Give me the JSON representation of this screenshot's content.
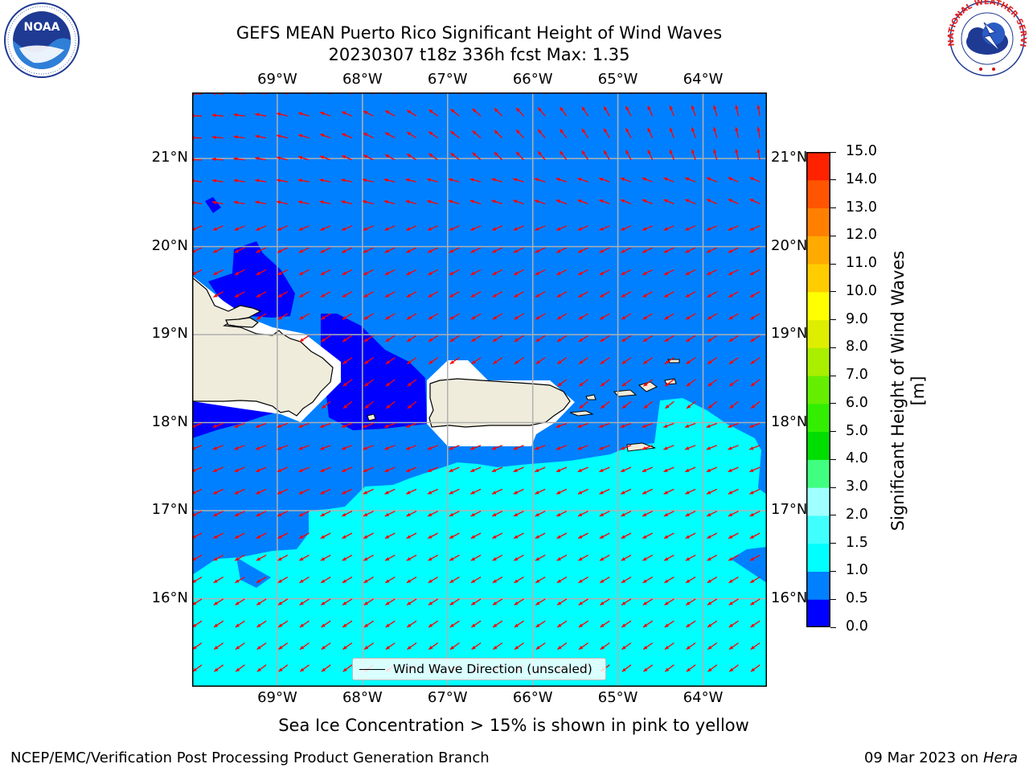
{
  "title": {
    "line1": "GEFS MEAN Puerto Rico Significant Height of Wind Waves",
    "line2": "20230307 t18z 336h fcst   Max: 1.35"
  },
  "map": {
    "lon_labels": [
      "69°W",
      "68°W",
      "67°W",
      "66°W",
      "65°W",
      "64°W"
    ],
    "lat_labels": [
      "21°N",
      "20°N",
      "19°N",
      "18°N",
      "17°N",
      "16°N"
    ],
    "lon_range": [
      -70.0,
      -63.25
    ],
    "lat_range": [
      15.0,
      21.75
    ],
    "legend_label": "Wind Wave Direction (unscaled)",
    "arrow_color": "#ff0000",
    "land_color": "#efecdc",
    "ocean_colors": {
      "0.0-0.5": "#0000ff",
      "0.5-1.0": "#0080ff",
      "1.0-1.5": "#00ffff"
    }
  },
  "colorbar": {
    "label": "Significant Height of Wind Waves [m]",
    "ticks": [
      "0.0",
      "0.5",
      "1.0",
      "1.5",
      "2.0",
      "3.0",
      "4.0",
      "5.0",
      "6.0",
      "7.0",
      "8.0",
      "9.0",
      "10.0",
      "11.0",
      "12.0",
      "13.0",
      "14.0",
      "15.0"
    ],
    "colors": [
      "#0000ff",
      "#0080ff",
      "#00ffff",
      "#40ffff",
      "#a0ffff",
      "#40ff80",
      "#00dd00",
      "#33ee00",
      "#66ee00",
      "#aaee00",
      "#ddee00",
      "#ffff00",
      "#ffcc00",
      "#ffaa00",
      "#ff8000",
      "#ff5500",
      "#ff2200"
    ]
  },
  "note": "Sea Ice Concentration > 15% is shown in pink to yellow",
  "footer": {
    "left": "NCEP/EMC/Verification Post Processing Product Generation Branch",
    "right_date": "09 Mar 2023 on ",
    "right_machine": "Hera"
  },
  "logos": {
    "noaa_text": "NOAA",
    "nws_text": "NATIONAL WEATHER SERVICE"
  }
}
